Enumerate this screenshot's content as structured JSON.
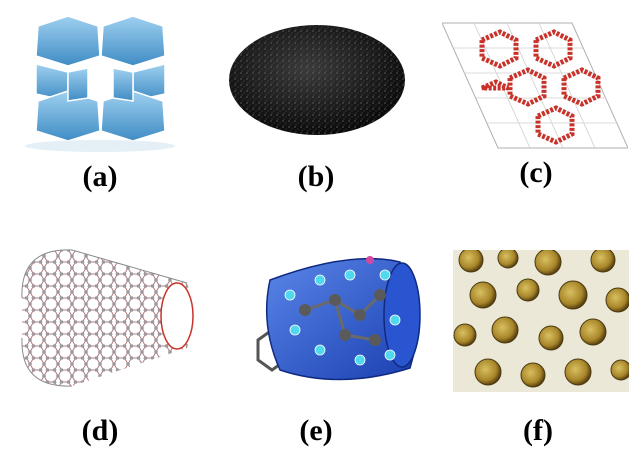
{
  "panels": [
    {
      "id": "a",
      "label": "(a)",
      "icon": "zeolite-framework-icon"
    },
    {
      "id": "b",
      "label": "(b)",
      "icon": "activated-carbon-powder-icon"
    },
    {
      "id": "c",
      "label": "(c)",
      "icon": "mof-honeycomb-lattice-icon"
    },
    {
      "id": "d",
      "label": "(d)",
      "icon": "carbon-nanotube-icon"
    },
    {
      "id": "e",
      "label": "(e)",
      "icon": "cyclodextrin-cone-icon"
    },
    {
      "id": "f",
      "label": "(f)",
      "icon": "microcapsules-photo-icon"
    }
  ],
  "colors": {
    "zeolite": "#5fa8d8",
    "carbon": "#1a1a1a",
    "mof": "#c8322a",
    "nanotube_atom": "#9a9aa0",
    "cone": "#1f4fc8",
    "capsule": "#b8962e",
    "label": "#000000"
  }
}
